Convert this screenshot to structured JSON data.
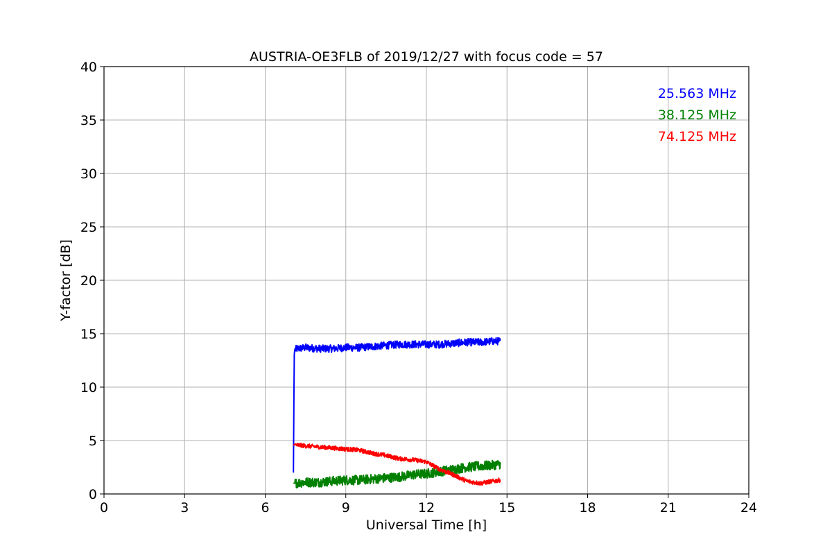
{
  "chart_data": {
    "type": "line",
    "title": "AUSTRIA-OE3FLB of 2019/12/27 with focus code = 57",
    "xlabel": "Universal Time [h]",
    "ylabel": "Y-factor [dB]",
    "xlim": [
      0,
      24
    ],
    "ylim": [
      0,
      40
    ],
    "xticks": [
      0,
      3,
      6,
      9,
      12,
      15,
      18,
      21,
      24
    ],
    "yticks": [
      0,
      5,
      10,
      15,
      20,
      25,
      30,
      35,
      40
    ],
    "grid": true,
    "legend_position": "top-right",
    "series": [
      {
        "name": "25.563 MHz",
        "color": "#0000ff",
        "noise": 0.35,
        "x": [
          7.05,
          7.08,
          7.1,
          7.2,
          7.5,
          8.0,
          8.5,
          9.0,
          9.5,
          10.0,
          10.5,
          11.0,
          11.5,
          12.0,
          12.5,
          13.0,
          13.5,
          14.0,
          14.5,
          14.75
        ],
        "y": [
          2.0,
          13.0,
          13.5,
          13.6,
          13.7,
          13.6,
          13.6,
          13.7,
          13.7,
          13.8,
          13.9,
          14.0,
          14.0,
          14.0,
          14.0,
          14.1,
          14.2,
          14.2,
          14.3,
          14.3
        ]
      },
      {
        "name": "38.125 MHz",
        "color": "#008000",
        "noise": 0.45,
        "x": [
          7.05,
          7.5,
          8.0,
          8.5,
          9.0,
          9.5,
          10.0,
          10.5,
          11.0,
          11.5,
          12.0,
          12.5,
          13.0,
          13.5,
          14.0,
          14.5,
          14.75
        ],
        "y": [
          1.0,
          1.1,
          1.1,
          1.2,
          1.3,
          1.3,
          1.4,
          1.5,
          1.6,
          1.8,
          1.9,
          2.1,
          2.3,
          2.5,
          2.6,
          2.7,
          2.8
        ]
      },
      {
        "name": "74.125 MHz",
        "color": "#ff0000",
        "noise": 0.2,
        "x": [
          7.05,
          7.5,
          8.0,
          8.5,
          9.0,
          9.5,
          10.0,
          10.5,
          11.0,
          11.5,
          12.0,
          12.5,
          13.0,
          13.5,
          14.0,
          14.5,
          14.75
        ],
        "y": [
          4.6,
          4.5,
          4.4,
          4.3,
          4.2,
          4.1,
          3.8,
          3.6,
          3.3,
          3.2,
          3.0,
          2.3,
          1.8,
          1.2,
          1.0,
          1.2,
          1.3
        ]
      }
    ]
  }
}
